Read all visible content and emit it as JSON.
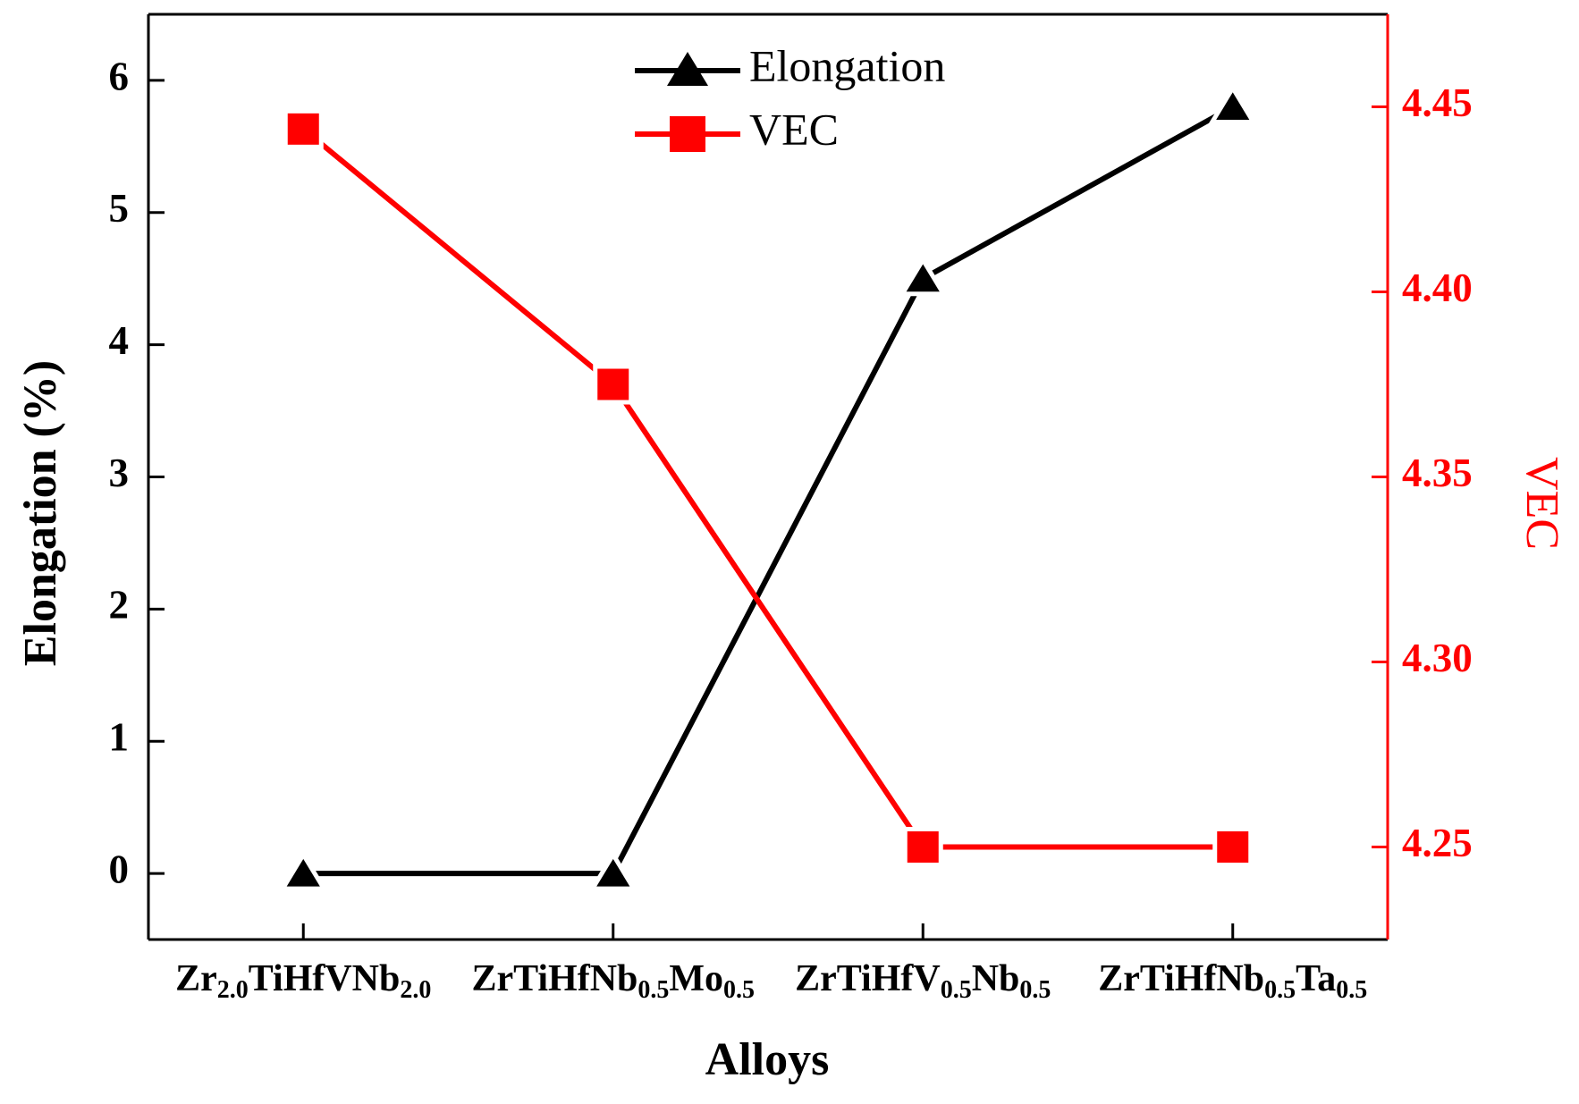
{
  "chart_data": {
    "type": "line",
    "x_label": "Alloys",
    "y_label": "Elongation (%)",
    "y2_label": "VEC",
    "categories": [
      [
        "Zr",
        {
          "sub": "2.0"
        },
        "TiHfVNb",
        {
          "sub": "2.0"
        }
      ],
      [
        "ZrTiHfNb",
        {
          "sub": "0.5"
        },
        "Mo",
        {
          "sub": "0.5"
        }
      ],
      [
        "ZrTiHfV",
        {
          "sub": "0.5"
        },
        "Nb",
        {
          "sub": "0.5"
        }
      ],
      [
        "ZrTiHfNb",
        {
          "sub": "0.5"
        },
        "Ta",
        {
          "sub": "0.5"
        }
      ]
    ],
    "series": [
      {
        "name": "Elongation",
        "color": "#000000",
        "marker": "triangle",
        "values": [
          0,
          0,
          4.5,
          5.8
        ]
      },
      {
        "name": "VEC",
        "color": "#ff0000",
        "marker": "square",
        "axis": "y2",
        "values": [
          4.444,
          4.375,
          4.25,
          4.25
        ]
      }
    ],
    "ylim": [
      -0.5,
      6.5
    ],
    "yticks": [
      0,
      1,
      2,
      3,
      4,
      5,
      6
    ],
    "y2lim": [
      4.225,
      4.475
    ],
    "y2ticks": [
      {
        "value": 4.25,
        "label": "4.25"
      },
      {
        "value": 4.3,
        "label": "4.30"
      },
      {
        "value": 4.35,
        "label": "4.35"
      },
      {
        "value": 4.4,
        "label": "4.40"
      },
      {
        "value": 4.45,
        "label": "4.45"
      }
    ],
    "y2_color": "#ff0000",
    "legend": "top"
  }
}
